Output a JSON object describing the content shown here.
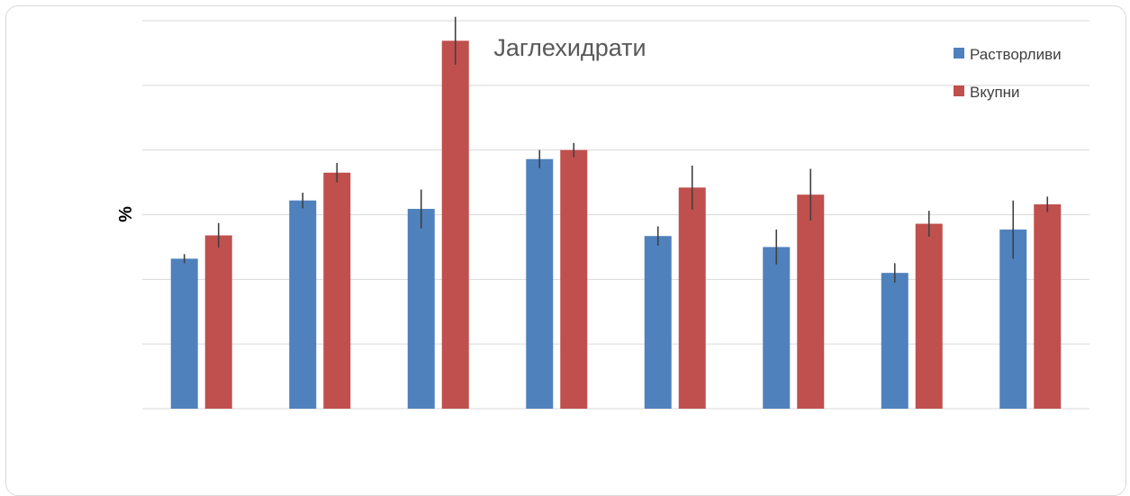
{
  "chart_data": {
    "type": "bar",
    "title": "Јаглехидрати",
    "xlabel": "",
    "ylabel": "%",
    "ylim": [
      0,
      6
    ],
    "grid": true,
    "legend_position": "top-right",
    "categories": [
      "",
      "",
      "",
      "",
      "",
      "",
      "",
      ""
    ],
    "series": [
      {
        "name": "Растворливи",
        "color": "#4f81bd",
        "values": [
          2.32,
          3.22,
          3.09,
          3.86,
          2.67,
          2.5,
          2.1,
          2.77
        ],
        "errors": [
          0.07,
          0.12,
          0.3,
          0.14,
          0.15,
          0.27,
          0.15,
          0.45
        ]
      },
      {
        "name": "Вкупни",
        "color": "#c0504d",
        "values": [
          2.68,
          3.65,
          5.69,
          4.0,
          3.42,
          3.31,
          2.86,
          3.16
        ],
        "errors": [
          0.19,
          0.15,
          0.37,
          0.11,
          0.34,
          0.4,
          0.2,
          0.12
        ]
      }
    ]
  }
}
